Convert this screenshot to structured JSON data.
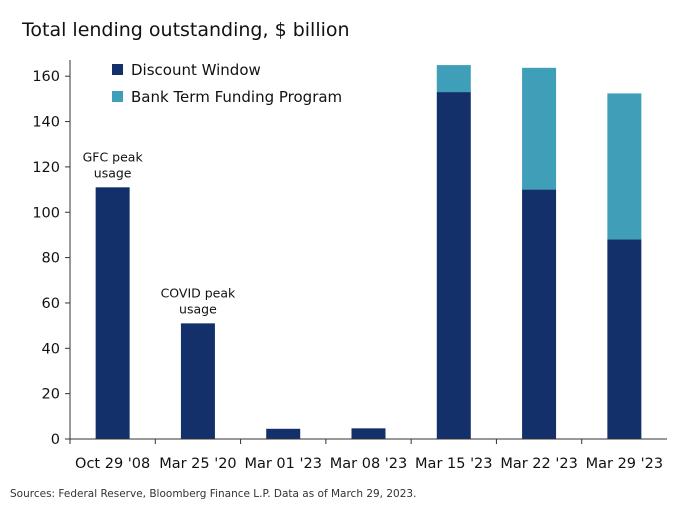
{
  "chart_data": {
    "type": "bar",
    "stacked": true,
    "title": "Total lending outstanding, $ billion",
    "categories": [
      "Oct 29 '08",
      "Mar 25 '20",
      "Mar 01 '23",
      "Mar 08 '23",
      "Mar 15 '23",
      "Mar 22 '23",
      "Mar 29 '23"
    ],
    "series": [
      {
        "name": "Discount Window",
        "color": "#13306b",
        "values": [
          111,
          51,
          4.5,
          4.7,
          153,
          110,
          88
        ]
      },
      {
        "name": "Bank Term Funding Program",
        "color": "#3f9fb8",
        "values": [
          0,
          0,
          0,
          0,
          11.9,
          53.7,
          64.4
        ]
      }
    ],
    "ylim": [
      0,
      170
    ],
    "yticks": [
      0,
      20,
      40,
      60,
      80,
      100,
      120,
      140,
      160
    ],
    "grid": false,
    "legend_position": "top-left",
    "annotations": [
      {
        "category": "Oct 29 '08",
        "lines": [
          "GFC peak",
          "usage"
        ]
      },
      {
        "category": "Mar 25 '20",
        "lines": [
          "COVID peak",
          "usage"
        ]
      }
    ],
    "source": "Sources: Federal Reserve, Bloomberg Finance L.P. Data as of March 29, 2023."
  }
}
